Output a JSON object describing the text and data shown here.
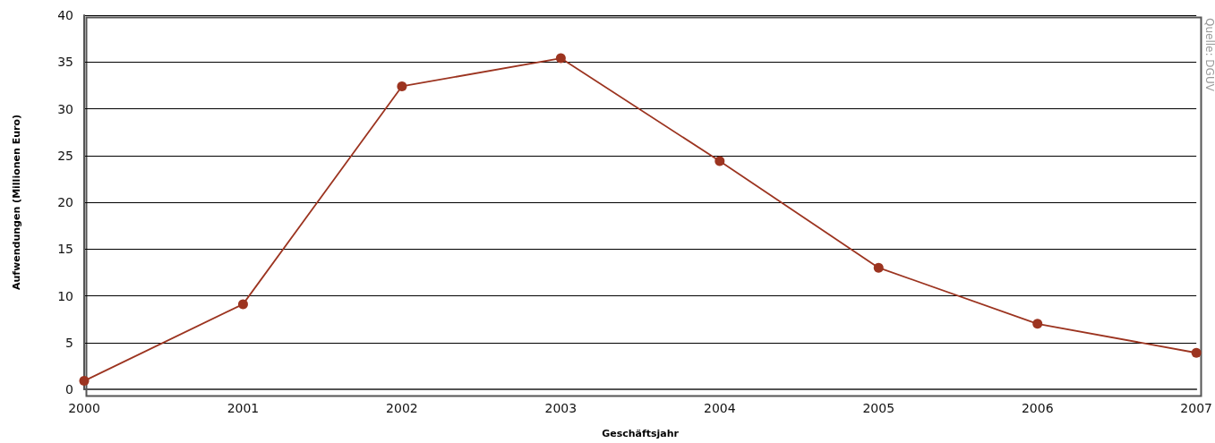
{
  "chart_data": {
    "type": "line",
    "xlabel": "Geschäftsjahr",
    "ylabel": "Aufwendungen (Millionen Euro)",
    "categories": [
      "2000",
      "2001",
      "2002",
      "2003",
      "2004",
      "2005",
      "2006",
      "2007"
    ],
    "series": [
      {
        "color": "#9c3420",
        "values": [
          0.9,
          9.1,
          32.4,
          35.4,
          24.4,
          13.0,
          7.0,
          3.9
        ]
      }
    ],
    "ylim": [
      0,
      40
    ],
    "yticks": [
      0,
      5,
      10,
      15,
      20,
      25,
      30,
      35,
      40
    ],
    "grid": "y",
    "marker": "circle",
    "line_style": "solid",
    "annotations": [
      "Quelle: DGUV"
    ]
  }
}
